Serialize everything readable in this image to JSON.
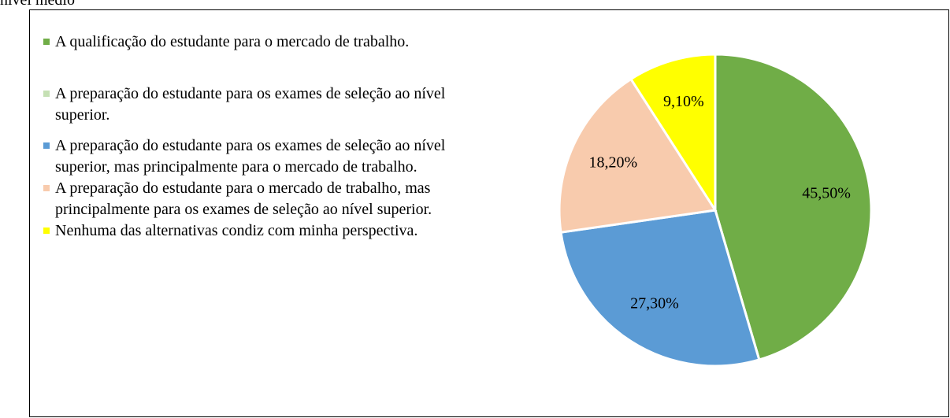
{
  "chart_data": {
    "type": "pie",
    "title": "nível médio",
    "categories": [
      "A qualificação do estudante para o mercado de trabalho.",
      "A preparação do estudante para os exames de seleção ao nível superior.",
      "A preparação do estudante para os exames de seleção ao nível superior, mas principalmente para o mercado de trabalho.",
      "A preparação do estudante para o mercado de trabalho, mas principalmente para os exames de seleção ao nível superior.",
      "Nenhuma das alternativas condiz com minha perspectiva."
    ],
    "values": [
      45.5,
      0,
      27.3,
      18.2,
      9.1
    ],
    "value_labels": [
      "45,50%",
      null,
      "27,30%",
      "18,20%",
      "9,10%"
    ],
    "colors": [
      "#70ad47",
      "#c5e0b4",
      "#5b9bd5",
      "#f8cbad",
      "#ffff00"
    ],
    "legend": "left"
  }
}
